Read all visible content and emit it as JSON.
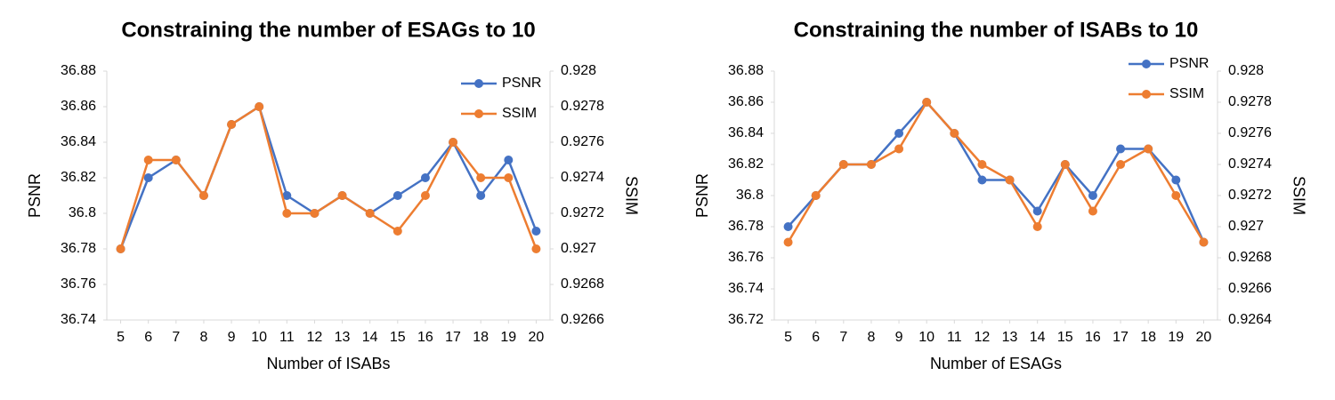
{
  "chart_data": [
    {
      "type": "line",
      "title": "Constraining the number of ESAGs to 10",
      "x_label": "Number of ISABs",
      "y_label": "PSNR",
      "y2_label": "SSIM",
      "x": [
        5,
        6,
        7,
        8,
        9,
        10,
        11,
        12,
        13,
        14,
        15,
        16,
        17,
        18,
        19,
        20
      ],
      "xlim": [
        4.5,
        20.5
      ],
      "xticks": [
        5,
        6,
        7,
        8,
        9,
        10,
        11,
        12,
        13,
        14,
        15,
        16,
        17,
        18,
        19,
        20
      ],
      "ylim": [
        36.74,
        36.88
      ],
      "yticks": [
        36.74,
        36.76,
        36.78,
        36.8,
        36.82,
        36.84,
        36.86,
        36.88
      ],
      "y2lim": [
        0.9266,
        0.928
      ],
      "y2ticks": [
        0.9266,
        0.9268,
        0.927,
        0.9272,
        0.9274,
        0.9276,
        0.9278,
        0.928
      ],
      "legend": "top-right",
      "series": [
        {
          "name": "PSNR",
          "color": "#4472c4",
          "values": [
            36.78,
            36.82,
            36.83,
            36.81,
            36.85,
            36.86,
            36.81,
            36.8,
            36.81,
            36.8,
            36.81,
            36.82,
            36.84,
            36.81,
            36.83,
            36.79
          ]
        },
        {
          "name": "SSIM",
          "color": "#ed7d31",
          "axis": "y2",
          "values": [
            0.927,
            0.9275,
            0.9275,
            0.9273,
            0.9277,
            0.9278,
            0.9272,
            0.9272,
            0.9273,
            0.9272,
            0.9271,
            0.9273,
            0.9276,
            0.9274,
            0.9274,
            0.927
          ]
        }
      ]
    },
    {
      "type": "line",
      "title": "Constraining the number of ISABs to 10",
      "x_label": "Number of ESAGs",
      "y_label": "PSNR",
      "y2_label": "SSIM",
      "x": [
        5,
        6,
        7,
        8,
        9,
        10,
        11,
        12,
        13,
        14,
        15,
        16,
        17,
        18,
        19,
        20
      ],
      "xlim": [
        4.5,
        20.5
      ],
      "xticks": [
        5,
        6,
        7,
        8,
        9,
        10,
        11,
        12,
        13,
        14,
        15,
        16,
        17,
        18,
        19,
        20
      ],
      "ylim": [
        36.72,
        36.88
      ],
      "yticks": [
        36.72,
        36.74,
        36.76,
        36.78,
        36.8,
        36.82,
        36.84,
        36.86,
        36.88
      ],
      "y2lim": [
        0.9264,
        0.928
      ],
      "y2ticks": [
        0.9264,
        0.9266,
        0.9268,
        0.927,
        0.9272,
        0.9274,
        0.9276,
        0.9278,
        0.928
      ],
      "legend": "top-right",
      "series": [
        {
          "name": "PSNR",
          "color": "#4472c4",
          "values": [
            36.78,
            36.8,
            36.82,
            36.82,
            36.84,
            36.86,
            36.84,
            36.81,
            36.81,
            36.79,
            36.82,
            36.8,
            36.83,
            36.83,
            36.81,
            36.77
          ]
        },
        {
          "name": "SSIM",
          "color": "#ed7d31",
          "axis": "y2",
          "values": [
            0.9269,
            0.9272,
            0.9274,
            0.9274,
            0.9275,
            0.9278,
            0.9276,
            0.9274,
            0.9273,
            0.927,
            0.9274,
            0.9271,
            0.9274,
            0.9275,
            0.9272,
            0.9269
          ]
        }
      ]
    }
  ]
}
